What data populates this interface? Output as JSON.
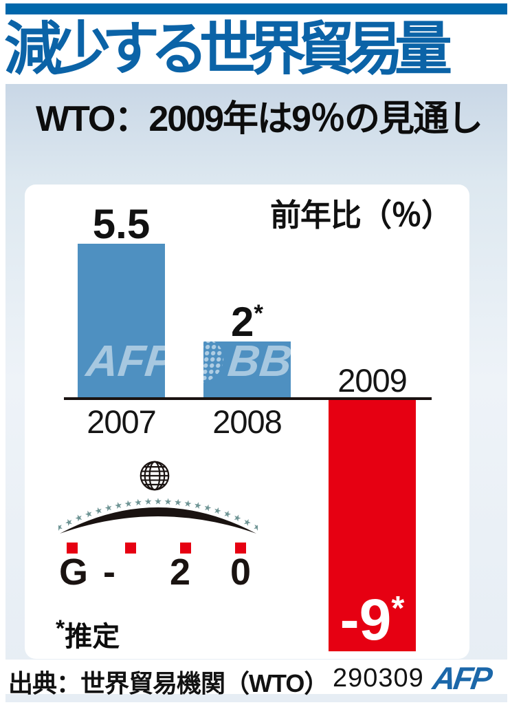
{
  "header": {
    "top_bar_color": "#0067ab",
    "title": "減少する世界貿易量",
    "subtitle": "WTO：2009年は9％の見通し"
  },
  "chart_data": {
    "type": "bar",
    "title": "減少する世界貿易量",
    "ylabel": "前年比（％）",
    "categories": [
      "2007",
      "2008",
      "2009"
    ],
    "values": [
      5.5,
      2,
      -9
    ],
    "value_labels": [
      {
        "text": "5.5",
        "sup": ""
      },
      {
        "text": "2",
        "sup": "*"
      },
      {
        "text": "-9",
        "sup": "*"
      }
    ],
    "bar_colors": [
      "#4e90c1",
      "#4e90c1",
      "#e60012"
    ],
    "ylim": [
      -9.5,
      6
    ],
    "grid": false,
    "legend": false
  },
  "watermark": {
    "left": "AFP",
    "right": "BB"
  },
  "g20_logo": {
    "letters": [
      "G",
      "-",
      "2",
      "0"
    ],
    "star_count": 21,
    "star_color": "#6e9494",
    "square_color": "#e60012",
    "arc_color": "#1a1311"
  },
  "footnote": {
    "sup": "*",
    "text": "推定"
  },
  "footer": {
    "source": "出典：世界貿易機関（WTO）",
    "code": "290309",
    "agency": "AFP"
  }
}
